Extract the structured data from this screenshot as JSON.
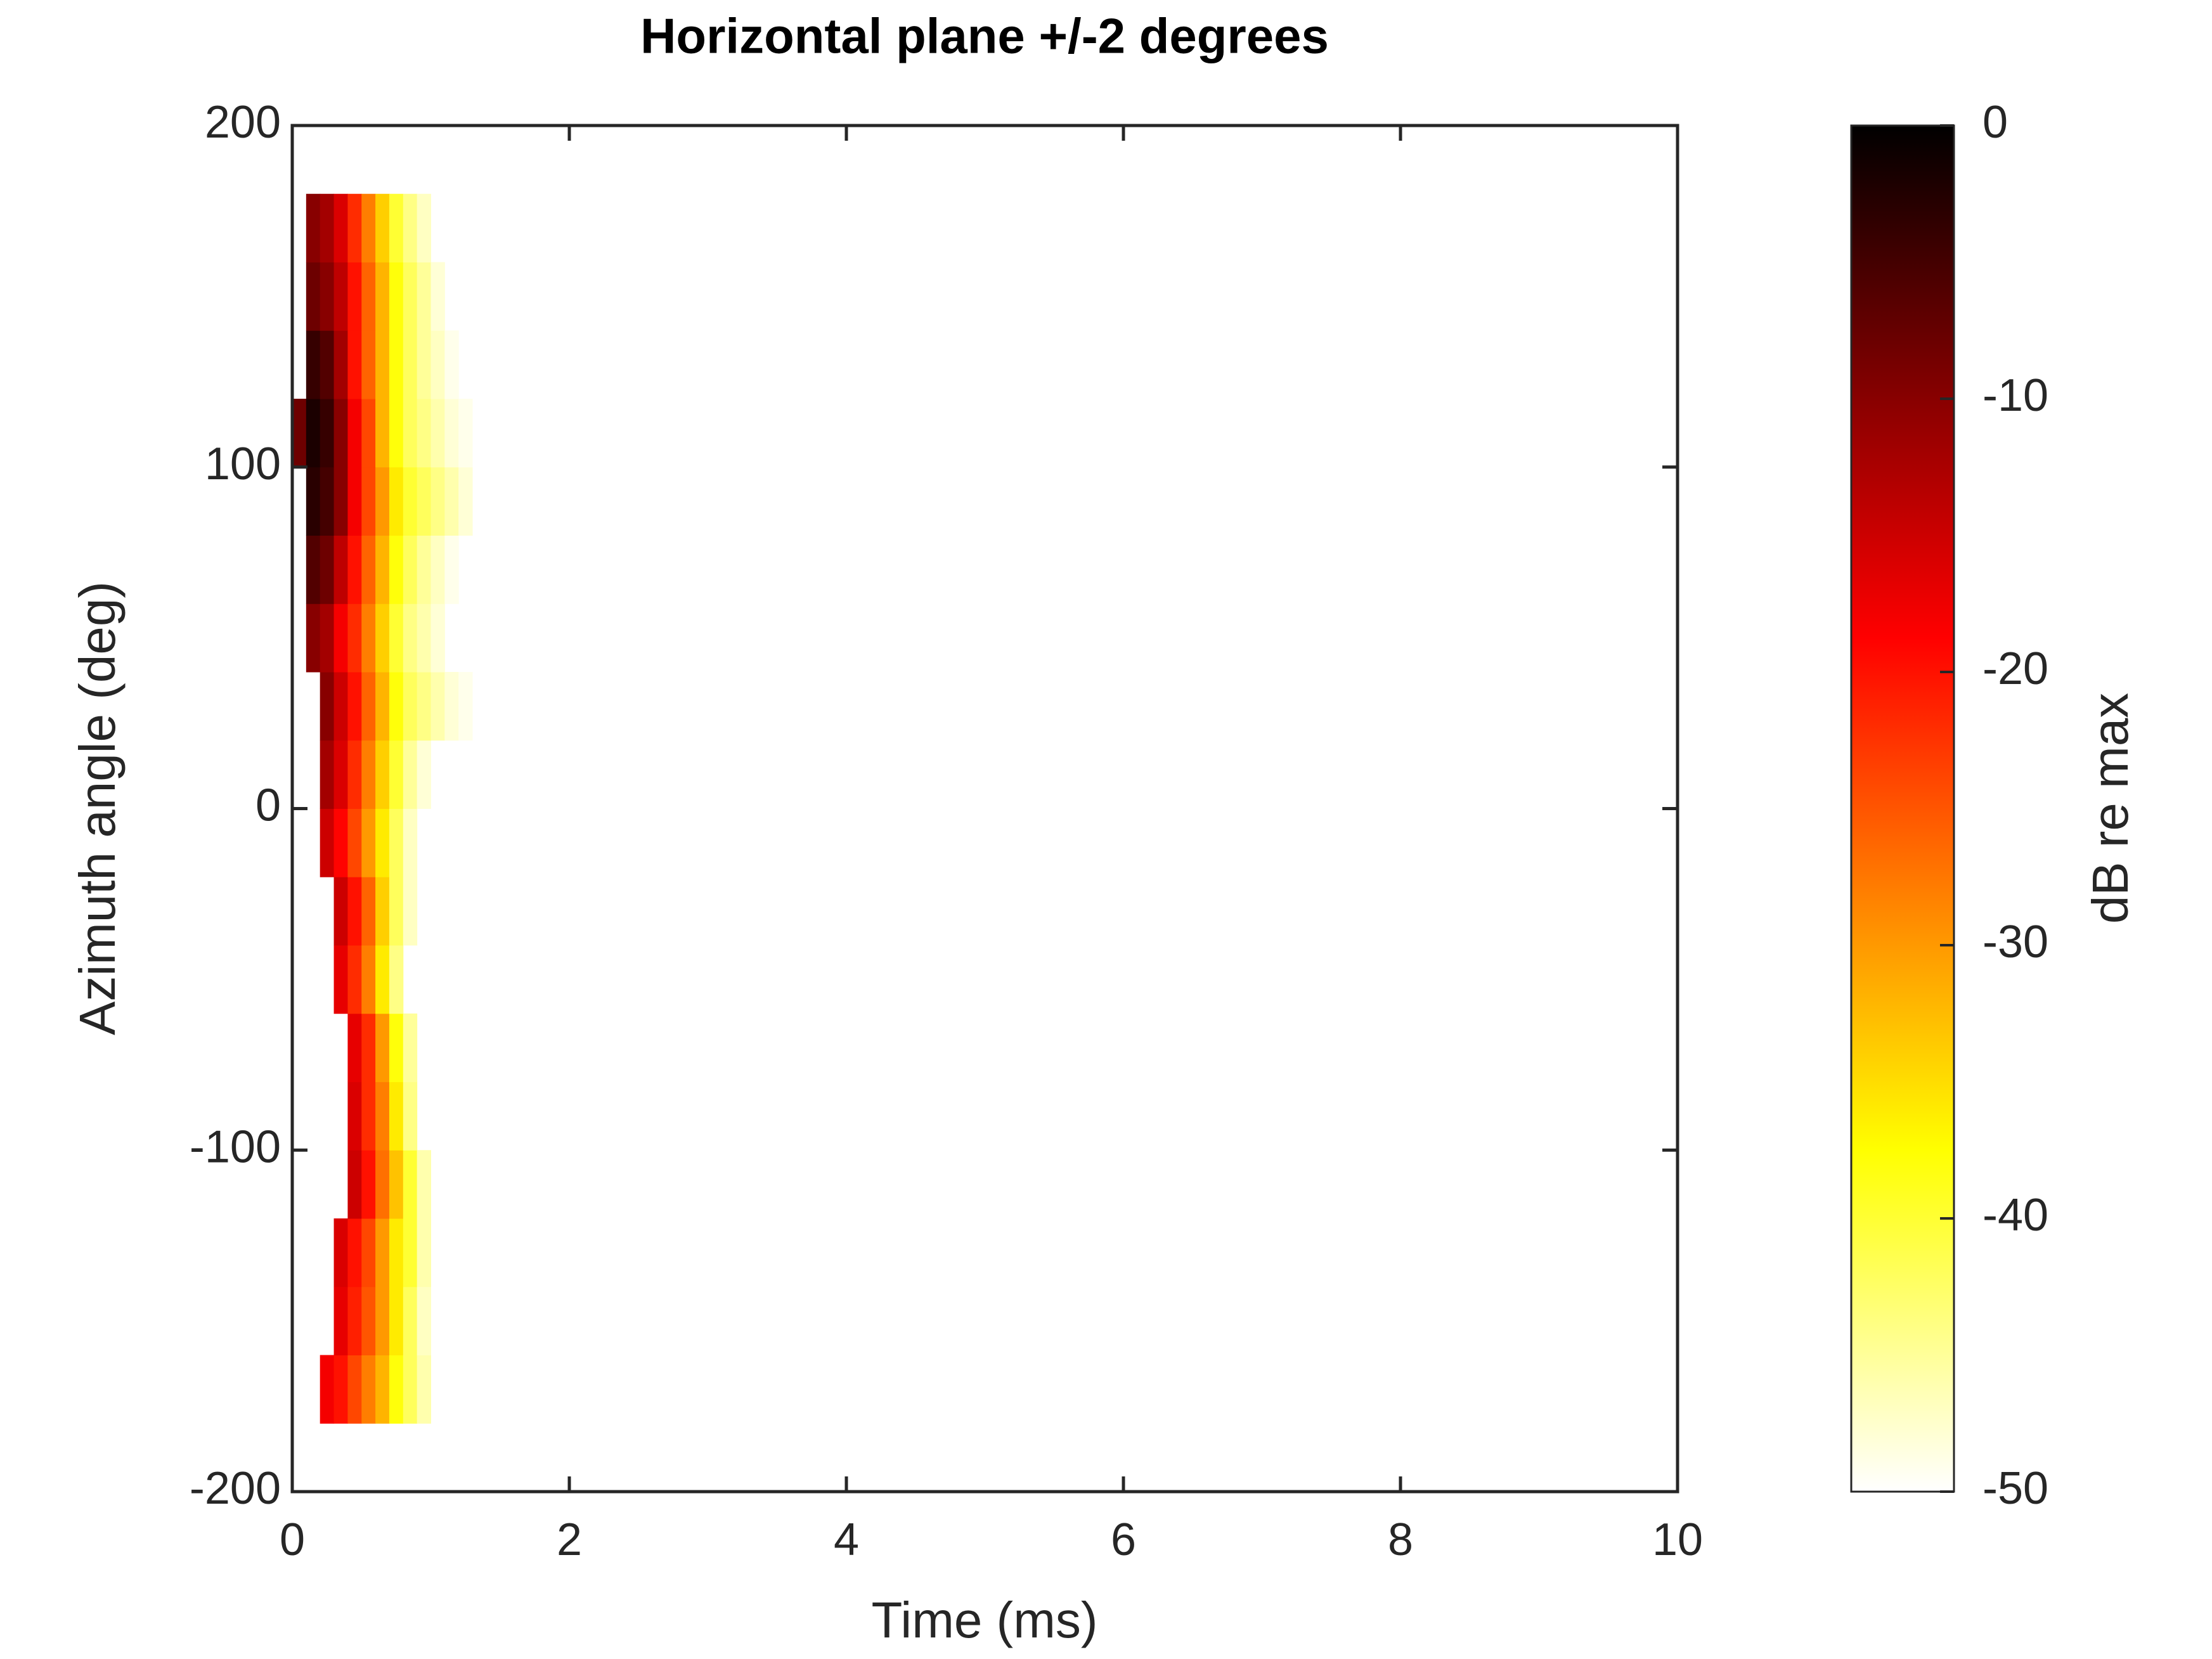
{
  "chart_data": {
    "type": "heatmap",
    "title": "Horizontal plane +/-2 degrees",
    "x_label": "Time (ms)",
    "y_label": "Azimuth angle (deg)",
    "colorbar_label": "dB re max",
    "xlim": [
      0,
      10
    ],
    "xticks": [
      0,
      2,
      4,
      6,
      8,
      10
    ],
    "ylim": [
      -200,
      200
    ],
    "yticks": [
      -200,
      -100,
      0,
      100,
      200
    ],
    "clim": [
      -50,
      0
    ],
    "cticks": [
      0,
      -10,
      -20,
      -30,
      -40,
      -50
    ],
    "colormap": "hot-reversed",
    "x_edges": [
      0,
      0.1,
      0.2,
      0.3,
      0.4,
      0.5,
      0.6,
      0.7,
      0.8,
      0.9,
      1.0,
      1.1,
      1.2,
      1.3,
      1.4
    ],
    "y_edges": [
      -180,
      -160,
      -140,
      -120,
      -100,
      -80,
      -60,
      -40,
      -20,
      0,
      20,
      40,
      60,
      80,
      100,
      120,
      140,
      160,
      180
    ],
    "z": [
      [
        null,
        null,
        -18,
        -20,
        -24,
        -28,
        -32,
        -38,
        -42,
        -46,
        null,
        null,
        null,
        null
      ],
      [
        null,
        null,
        null,
        -17,
        -21,
        -25,
        -30,
        -36,
        -42,
        -47,
        null,
        null,
        null,
        null
      ],
      [
        null,
        null,
        null,
        -16,
        -20,
        -24,
        -30,
        -36,
        -40,
        -46,
        null,
        null,
        null,
        null
      ],
      [
        null,
        null,
        null,
        null,
        -15,
        -20,
        -27,
        -33,
        -40,
        -46,
        null,
        null,
        null,
        null
      ],
      [
        null,
        null,
        null,
        null,
        -16,
        -22,
        -28,
        -36,
        -44,
        null,
        null,
        null,
        null,
        null
      ],
      [
        null,
        null,
        null,
        null,
        -17,
        -22,
        -30,
        -38,
        -45,
        null,
        null,
        null,
        null,
        null
      ],
      [
        null,
        null,
        null,
        -17,
        -22,
        -28,
        -36,
        -44,
        null,
        null,
        null,
        null,
        null,
        null
      ],
      [
        null,
        null,
        null,
        -15,
        -20,
        -26,
        -34,
        -42,
        -47,
        null,
        null,
        null,
        null,
        null
      ],
      [
        null,
        null,
        -15,
        -19,
        -24,
        -30,
        -36,
        -42,
        -47,
        null,
        null,
        null,
        null,
        null
      ],
      [
        null,
        null,
        -12,
        -16,
        -22,
        -28,
        -34,
        -40,
        -45,
        -48,
        null,
        null,
        null,
        null
      ],
      [
        null,
        null,
        -10,
        -15,
        -20,
        -26,
        -32,
        -38,
        -42,
        -44,
        -46,
        -48,
        -49,
        null
      ],
      [
        null,
        -10,
        -12,
        -18,
        -22,
        -28,
        -34,
        -40,
        -44,
        -46,
        -48,
        null,
        null,
        null
      ],
      [
        null,
        -6,
        -8,
        -14,
        -20,
        -26,
        -32,
        -38,
        -42,
        -45,
        -47,
        -49,
        null,
        null
      ],
      [
        null,
        -3,
        -5,
        -10,
        -18,
        -24,
        -30,
        -36,
        -40,
        -42,
        -44,
        -46,
        -48,
        null
      ],
      [
        -8,
        -2,
        -4,
        -10,
        -18,
        -24,
        -32,
        -38,
        -42,
        -44,
        -46,
        -48,
        -49,
        null
      ],
      [
        null,
        -4,
        -6,
        -12,
        -20,
        -26,
        -32,
        -38,
        -42,
        -45,
        -47,
        -49,
        null,
        null
      ],
      [
        null,
        -8,
        -10,
        -14,
        -20,
        -26,
        -32,
        -38,
        -42,
        -45,
        -48,
        null,
        null,
        null
      ],
      [
        null,
        -10,
        -12,
        -16,
        -22,
        -28,
        -34,
        -40,
        -44,
        -47,
        null,
        null,
        null,
        null
      ]
    ]
  }
}
